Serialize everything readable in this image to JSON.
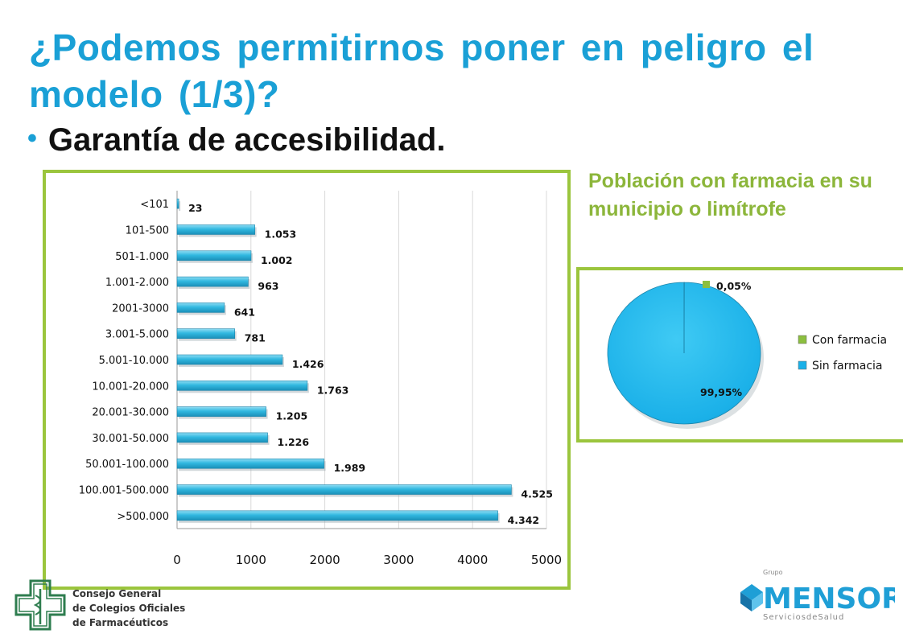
{
  "slide": {
    "title": "¿Podemos permitirnos poner en peligro el modelo (1/3)?",
    "bullet": "Garantía de accesibilidad.",
    "bullet_symbol": "•"
  },
  "pie_caption": "Población con farmacia en su municipio o limítrofe",
  "colors": {
    "title": "#1aa0d6",
    "accent_green": "#9bc53d",
    "caption_green": "#8cb63b",
    "bar_fill": "#31b8e0",
    "pie_blue": "#1ab0e8",
    "pie_green": "#8cbf3f",
    "gridline": "#d9d9d9"
  },
  "chart_data": [
    {
      "type": "bar",
      "orientation": "horizontal",
      "categories": [
        "<101",
        "101-500",
        "501-1.000",
        "1.001-2.000",
        "2001-3000",
        "3.001-5.000",
        "5.001-10.000",
        "10.001-20.000",
        "20.001-30.000",
        "30.001-50.000",
        "50.001-100.000",
        "100.001-500.000",
        ">500.000"
      ],
      "values": [
        23,
        1053,
        1002,
        963,
        641,
        781,
        1426,
        1763,
        1205,
        1226,
        1989,
        4525,
        4342
      ],
      "value_labels": [
        "23",
        "1.053",
        "1.002",
        "963",
        "641",
        "781",
        "1.426",
        "1.763",
        "1.205",
        "1.226",
        "1.989",
        "4.525",
        "4.342"
      ],
      "xlim": [
        0,
        5000
      ],
      "xticks": [
        0,
        1000,
        2000,
        3000,
        4000,
        5000
      ],
      "xtick_labels": [
        "0",
        "1000",
        "2000",
        "3000",
        "4000",
        "5000"
      ],
      "grid": true,
      "title": "",
      "xlabel": "",
      "ylabel": ""
    },
    {
      "type": "pie",
      "labels": [
        "Con farmacia",
        "Sin farmacia"
      ],
      "values": [
        0.05,
        99.95
      ],
      "value_labels": [
        "0,05%",
        "99,95%"
      ],
      "legend": "right"
    }
  ],
  "logos": {
    "left": [
      "Consejo General",
      "de Colegios Oficiales",
      "de Farmacéuticos"
    ],
    "right_group": "Grupo",
    "right_name": "MENSOR",
    "right_tagline": "ServiciosdeSalud"
  }
}
